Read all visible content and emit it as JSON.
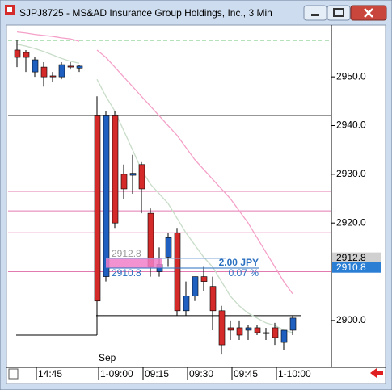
{
  "window": {
    "title": "SJPJ8725 - MS&AD Insurance Group Holdings, Inc., 3 Min"
  },
  "chart_data": {
    "type": "candlestick",
    "categories": [
      null,
      null,
      "14:45",
      null,
      null,
      null,
      null,
      null,
      null,
      "1-09:00",
      null,
      null,
      null,
      null,
      "09:15",
      null,
      null,
      null,
      null,
      "09:30",
      null,
      null,
      null,
      null,
      "09:45",
      null,
      null,
      null,
      null,
      "1-10:00",
      null,
      null
    ],
    "month_label": "Sep",
    "open": [
      2955.5,
      2955,
      2951,
      2952,
      2950.2,
      2950,
      2952.2,
      2951.8,
      null,
      2942,
      2909,
      2942,
      2930,
      2929.8,
      2932,
      2922,
      2910,
      2913,
      2918,
      2902,
      2905,
      2909,
      2907,
      2902,
      2898.5,
      2898.5,
      2898,
      2898.5,
      2897.5,
      2898.5,
      2895.5,
      2898
    ],
    "high": [
      2957.5,
      2955.5,
      2954,
      2953,
      2951,
      2953,
      2953,
      2952.5,
      null,
      2946,
      2943,
      2943,
      2932,
      2934,
      2932.5,
      2923,
      2915,
      2918,
      2919,
      2908,
      2909,
      2911,
      2909,
      2903,
      2900,
      2900,
      2899,
      2899,
      2898.5,
      2899.5,
      2898,
      2901
    ],
    "low": [
      2952,
      2951,
      2950,
      2948,
      2949,
      2949.5,
      2951.5,
      2951,
      null,
      2897,
      2908,
      2919,
      2925,
      2926,
      2922,
      2909,
      2909,
      2911,
      2901,
      2901,
      2904,
      2906,
      2898,
      2893,
      2896,
      2896,
      2896,
      2897,
      2896,
      2895,
      2894,
      2897
    ],
    "close": [
      2954,
      2954,
      2953.5,
      2950,
      2950,
      2952.5,
      2952,
      2952.2,
      null,
      2904,
      2942,
      2920,
      2927,
      2930.2,
      2927,
      2911,
      2911.5,
      2917,
      2902,
      2905,
      2909,
      2908,
      2902,
      2895,
      2898,
      2897,
      2898.5,
      2897.5,
      2897.3,
      2896.5,
      2898,
      2900.5
    ],
    "up_color": "#1f5fbf",
    "down_color": "#d42a2a",
    "series": [
      {
        "color": "#f4a0c8",
        "values": [
          2959.2,
          2959,
          2958.7,
          2958.5,
          2958.3,
          2958,
          2957.8,
          2957.3,
          null,
          2955.5,
          2954,
          2952,
          2950,
          2948,
          2946,
          2944,
          2942,
          2940,
          2938,
          2935.5,
          2933,
          2931,
          2929,
          2927,
          2925,
          2922.5,
          2920,
          2917,
          2914,
          2911,
          2908,
          2905.5
        ]
      },
      {
        "color": "#c8dcc8",
        "values": [
          2956.7,
          2956.3,
          2955.8,
          2955.2,
          2954.5,
          2953.8,
          2953.2,
          2952.8,
          null,
          2949.5,
          2946,
          2943,
          2939,
          2935,
          2931,
          2928,
          2926,
          2924,
          2921,
          2918,
          2915.5,
          2913,
          2911,
          2908,
          2905,
          2903,
          2901.5,
          2900.5,
          2899.5,
          2899,
          2898,
          2897.5
        ]
      }
    ],
    "hlines": [
      {
        "value": 2957.5,
        "color": "#3cb44b",
        "dash": true
      },
      {
        "value": 2942,
        "color": "#888888",
        "dash": false
      },
      {
        "value": 2926.5,
        "color": "#e27ab0",
        "dash": false
      },
      {
        "value": 2922.5,
        "color": "#e27ab0",
        "dash": false
      },
      {
        "value": 2918,
        "color": "#e27ab0",
        "dash": false
      },
      {
        "value": 2910,
        "color": "#e27ab0",
        "dash": false
      }
    ],
    "steps": [
      {
        "value": 2897,
        "from": 0,
        "to": 9,
        "color": "#000000"
      },
      {
        "value": 2901,
        "from": 9,
        "to": 32,
        "color": "#000000"
      }
    ],
    "annotations": [
      "2912.8",
      "2910.8",
      "2.00 JPY",
      "0.07 %"
    ],
    "price_labels": [
      2912.8,
      2910.8
    ],
    "ylim": [
      2891.2,
      2960.3
    ],
    "yticks": [
      {
        "value": 2900,
        "label": "2900.0"
      },
      {
        "value": 2920,
        "label": "2920.0"
      },
      {
        "value": 2930,
        "label": "2930.0"
      },
      {
        "value": 2940,
        "label": "2940.0"
      },
      {
        "value": 2950,
        "label": "2950.0"
      }
    ]
  }
}
